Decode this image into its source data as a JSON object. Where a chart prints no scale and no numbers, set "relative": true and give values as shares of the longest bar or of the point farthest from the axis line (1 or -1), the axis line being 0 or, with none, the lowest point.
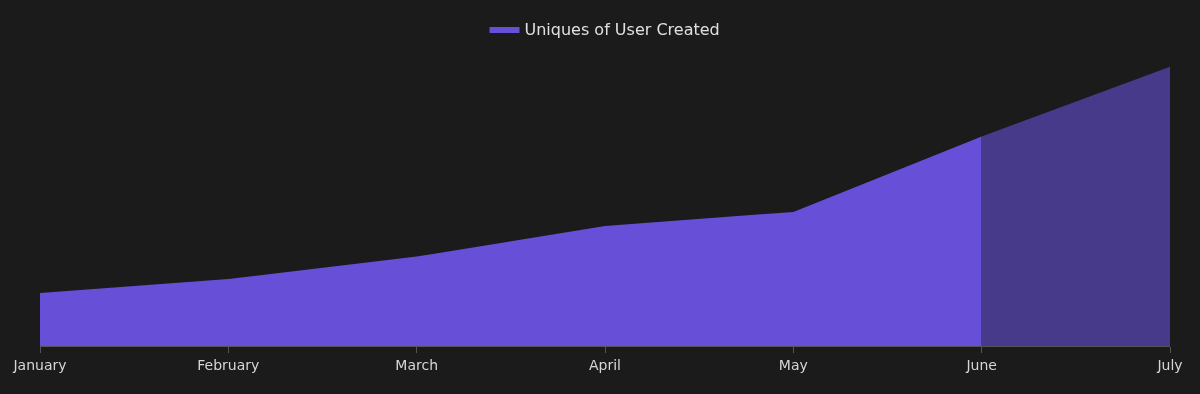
{
  "chart_data": {
    "type": "area",
    "relative": true,
    "categories": [
      "January",
      "February",
      "March",
      "April",
      "May",
      "June",
      "July"
    ],
    "series": [
      {
        "name": "Uniques of User Created",
        "color": "#674fd8",
        "values": [
          0.19,
          0.24,
          0.32,
          0.43,
          0.48,
          0.75,
          null
        ]
      },
      {
        "color": "#473a8a",
        "values": [
          null,
          null,
          null,
          null,
          null,
          0.75,
          1
        ]
      }
    ],
    "legend": "top"
  }
}
